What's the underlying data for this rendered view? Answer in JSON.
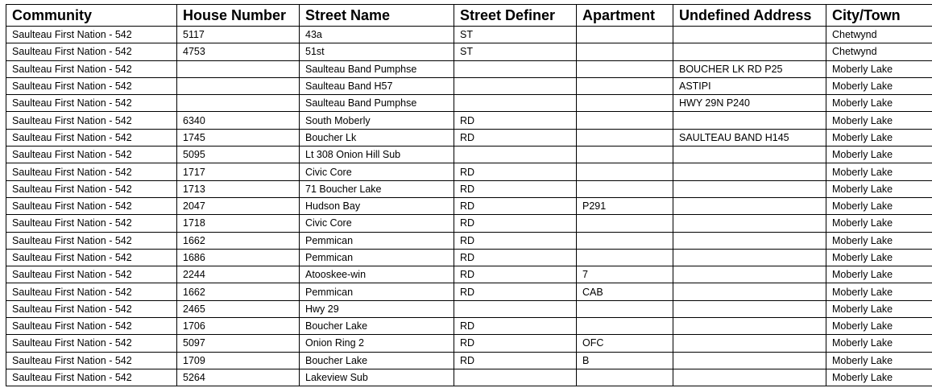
{
  "table": {
    "headers": [
      "Community",
      "House Number",
      "Street Name",
      "Street Definer",
      "Apartment",
      "Undefined Address",
      "City/Town"
    ],
    "rows": [
      [
        "Saulteau First Nation - 542",
        "5117",
        "43a",
        "ST",
        "",
        "",
        "Chetwynd"
      ],
      [
        "Saulteau First Nation - 542",
        "4753",
        "51st",
        "ST",
        "",
        "",
        "Chetwynd"
      ],
      [
        "Saulteau First Nation - 542",
        "",
        "Saulteau Band Pumphse",
        "",
        "",
        "BOUCHER LK RD P25",
        "Moberly Lake"
      ],
      [
        "Saulteau First Nation - 542",
        "",
        "Saulteau Band H57",
        "",
        "",
        "ASTIPI",
        "Moberly Lake"
      ],
      [
        "Saulteau First Nation - 542",
        "",
        "Saulteau Band Pumphse",
        "",
        "",
        "HWY 29N P240",
        "Moberly Lake"
      ],
      [
        "Saulteau First Nation - 542",
        "6340",
        "South Moberly",
        "RD",
        "",
        "",
        "Moberly Lake"
      ],
      [
        "Saulteau First Nation - 542",
        "1745",
        "Boucher Lk",
        "RD",
        "",
        "SAULTEAU BAND H145",
        "Moberly Lake"
      ],
      [
        "Saulteau First Nation - 542",
        "5095",
        "Lt 308 Onion Hill Sub",
        "",
        "",
        "",
        "Moberly Lake"
      ],
      [
        "Saulteau First Nation - 542",
        "1717",
        "Civic Core",
        "RD",
        "",
        "",
        "Moberly Lake"
      ],
      [
        "Saulteau First Nation - 542",
        "1713",
        "71 Boucher Lake",
        "RD",
        "",
        "",
        "Moberly Lake"
      ],
      [
        "Saulteau First Nation - 542",
        "2047",
        "Hudson Bay",
        "RD",
        "P291",
        "",
        "Moberly Lake"
      ],
      [
        "Saulteau First Nation - 542",
        "1718",
        "Civic Core",
        "RD",
        "",
        "",
        "Moberly Lake"
      ],
      [
        "Saulteau First Nation - 542",
        "1662",
        "Pemmican",
        "RD",
        "",
        "",
        "Moberly Lake"
      ],
      [
        "Saulteau First Nation - 542",
        "1686",
        "Pemmican",
        "RD",
        "",
        "",
        "Moberly Lake"
      ],
      [
        "Saulteau First Nation - 542",
        "2244",
        "Atooskee-win",
        "RD",
        "7",
        "",
        "Moberly Lake"
      ],
      [
        "Saulteau First Nation - 542",
        "1662",
        "Pemmican",
        "RD",
        "CAB",
        "",
        "Moberly Lake"
      ],
      [
        "Saulteau First Nation - 542",
        "2465",
        "Hwy 29",
        "",
        "",
        "",
        "Moberly Lake"
      ],
      [
        "Saulteau First Nation - 542",
        "1706",
        "Boucher Lake",
        "RD",
        "",
        "",
        "Moberly Lake"
      ],
      [
        "Saulteau First Nation - 542",
        "5097",
        "Onion Ring 2",
        "RD",
        "OFC",
        "",
        "Moberly Lake"
      ],
      [
        "Saulteau First Nation - 542",
        "1709",
        "Boucher Lake",
        "RD",
        "B",
        "",
        "Moberly Lake"
      ],
      [
        "Saulteau First Nation - 542",
        "5264",
        "Lakeview Sub",
        "",
        "",
        "",
        "Moberly Lake"
      ]
    ]
  }
}
